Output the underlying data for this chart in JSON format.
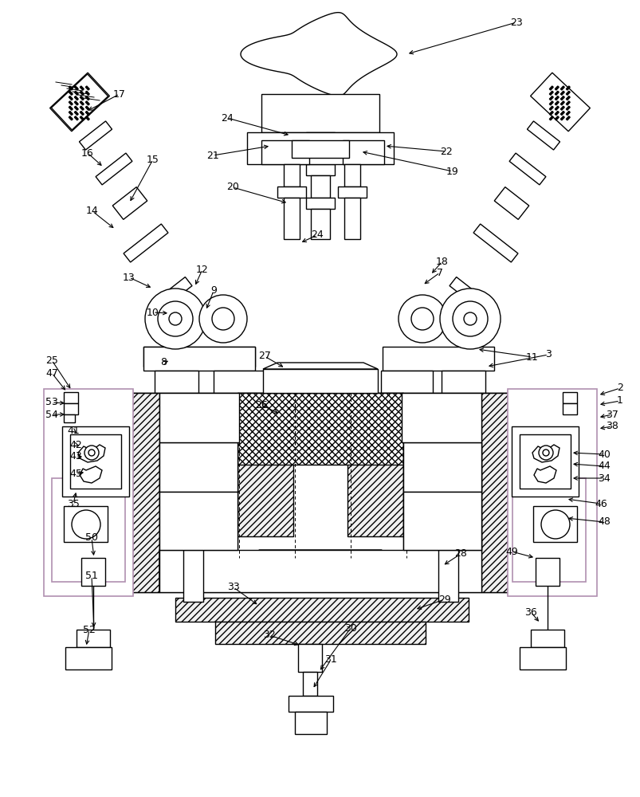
{
  "bg_color": "#ffffff",
  "line_color": "#000000",
  "purple_color": "#b090b0",
  "gray_hatch": "#888888"
}
